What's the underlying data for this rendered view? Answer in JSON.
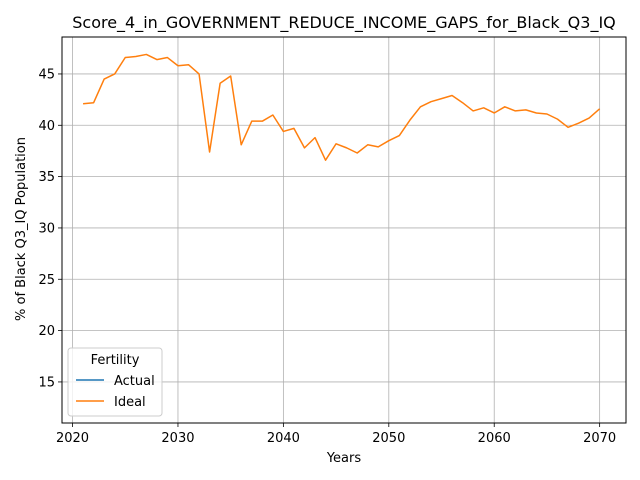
{
  "chart_data": {
    "type": "line",
    "title": "Score_4_in_GOVERNMENT_REDUCE_INCOME_GAPS_for_Black_Q3_IQ",
    "xlabel": "Years",
    "ylabel": "% of Black Q3_IQ Population",
    "xlim": [
      2019,
      2072.5
    ],
    "ylim": [
      11,
      48.6
    ],
    "xticks": [
      2020,
      2030,
      2040,
      2050,
      2060,
      2070
    ],
    "yticks": [
      15,
      20,
      25,
      30,
      35,
      40,
      45
    ],
    "grid": true,
    "legend": {
      "title": "Fertility",
      "placement": "lower-left",
      "entries": [
        "Actual",
        "Ideal"
      ]
    },
    "series": [
      {
        "name": "Actual",
        "color": "#1f77b4",
        "x": [],
        "values": []
      },
      {
        "name": "Ideal",
        "color": "#ff7f0e",
        "x": [
          2021,
          2022,
          2023,
          2024,
          2025,
          2026,
          2027,
          2028,
          2029,
          2030,
          2031,
          2032,
          2033,
          2034,
          2035,
          2036,
          2037,
          2038,
          2039,
          2040,
          2041,
          2042,
          2043,
          2044,
          2045,
          2046,
          2047,
          2048,
          2049,
          2050,
          2051,
          2052,
          2053,
          2054,
          2055,
          2056,
          2057,
          2058,
          2059,
          2060,
          2061,
          2062,
          2063,
          2064,
          2065,
          2066,
          2067,
          2068,
          2069,
          2070
        ],
        "values": [
          42.1,
          42.2,
          44.5,
          45.0,
          46.6,
          46.7,
          46.9,
          46.4,
          46.6,
          45.8,
          45.9,
          45.0,
          37.4,
          44.1,
          44.8,
          38.1,
          40.4,
          40.4,
          41.0,
          39.4,
          39.7,
          37.8,
          38.8,
          36.6,
          38.2,
          37.8,
          37.3,
          38.1,
          37.9,
          38.5,
          39.0,
          40.5,
          41.8,
          42.3,
          42.6,
          42.9,
          42.2,
          41.4,
          41.7,
          41.2,
          41.8,
          41.4,
          41.5,
          41.2,
          41.1,
          40.6,
          39.8,
          40.2,
          40.7,
          41.6
        ]
      }
    ]
  }
}
